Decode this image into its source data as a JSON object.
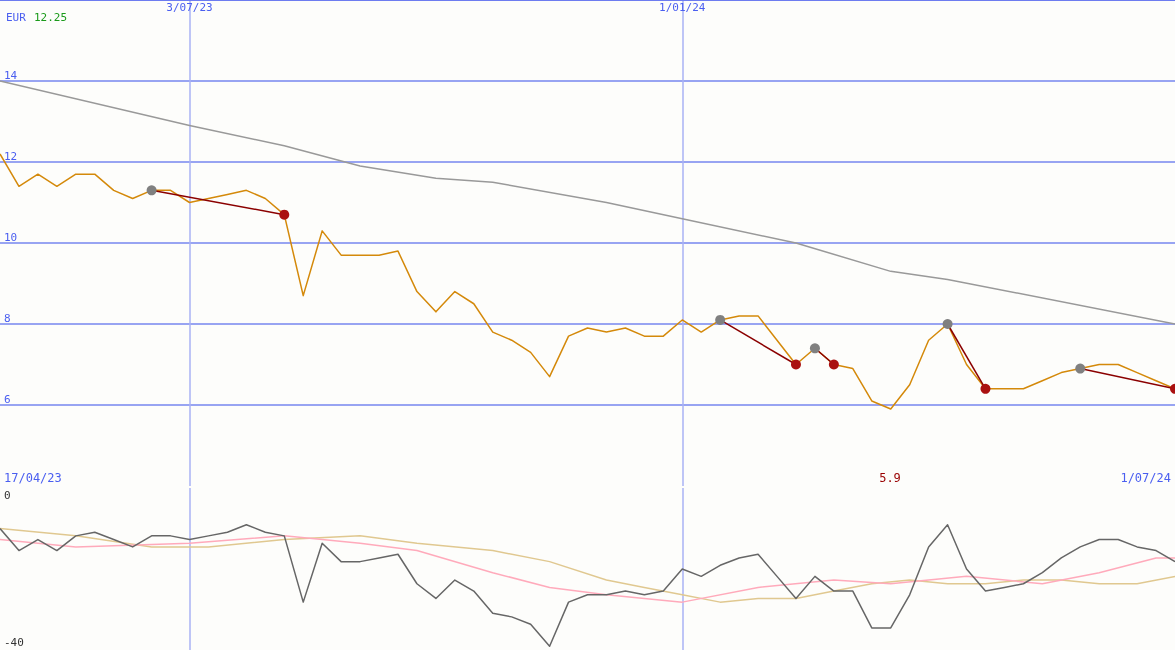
{
  "chart_data": [
    {
      "type": "line",
      "subtitle": "12.25",
      "ylabel": "EUR",
      "x": [
        "2023-04-24",
        "2023-05-01",
        "2023-05-08",
        "2023-05-15",
        "2023-05-22",
        "2023-05-29",
        "2023-06-05",
        "2023-06-12",
        "2023-06-19",
        "2023-06-26",
        "2023-07-03",
        "2023-07-10",
        "2023-07-17",
        "2023-07-24",
        "2023-07-31",
        "2023-08-07",
        "2023-08-14",
        "2023-08-21",
        "2023-08-28",
        "2023-09-04",
        "2023-09-11",
        "2023-09-18",
        "2023-09-25",
        "2023-10-02",
        "2023-10-09",
        "2023-10-16",
        "2023-10-23",
        "2023-10-30",
        "2023-11-06",
        "2023-11-13",
        "2023-11-20",
        "2023-11-27",
        "2023-12-04",
        "2023-12-11",
        "2023-12-18",
        "2023-12-25",
        "2024-01-01",
        "2024-01-08",
        "2024-01-15",
        "2024-01-22",
        "2024-01-29",
        "2024-02-05",
        "2024-02-12",
        "2024-02-19",
        "2024-02-26",
        "2024-03-04",
        "2024-03-11",
        "2024-03-18",
        "2024-03-25",
        "2024-04-01",
        "2024-04-08",
        "2024-04-15",
        "2024-04-22",
        "2024-04-29",
        "2024-05-06",
        "2024-05-13",
        "2024-05-20",
        "2024-05-27",
        "2024-06-03",
        "2024-06-10",
        "2024-06-17",
        "2024-06-24",
        "2024-07-01"
      ],
      "xlim": [
        "2023-04-24",
        "2024-07-01"
      ],
      "ylim": [
        4,
        16
      ],
      "xticks": [
        {
          "value": "2023-07-03",
          "label": "3/07/23"
        },
        {
          "value": "2024-01-01",
          "label": "1/01/24"
        }
      ],
      "yticks": [
        6,
        8,
        10,
        12,
        14
      ],
      "grid": true,
      "marker": "none",
      "annotations": [
        "17/04/23",
        "5.9",
        "1/07/24"
      ],
      "series": [
        {
          "color": "#999999",
          "x": [
            "2023-04-24",
            "2023-07-03",
            "2023-08-07",
            "2023-09-04",
            "2023-10-02",
            "2023-10-23",
            "2023-12-04",
            "2024-01-01",
            "2024-02-12",
            "2024-03-18",
            "2024-04-08",
            "2024-07-01"
          ],
          "values": [
            14.0,
            12.9,
            12.4,
            11.9,
            11.6,
            11.5,
            11.0,
            10.6,
            10.0,
            9.3,
            9.1,
            8.0
          ]
        },
        {
          "color": "#d4890a",
          "values": [
            12.2,
            11.4,
            11.7,
            11.4,
            11.7,
            11.7,
            11.3,
            11.1,
            11.3,
            11.3,
            11.0,
            11.1,
            11.2,
            11.3,
            11.1,
            10.7,
            8.7,
            10.3,
            9.7,
            9.7,
            9.7,
            9.8,
            8.8,
            8.3,
            8.8,
            8.5,
            7.8,
            7.6,
            7.3,
            6.7,
            7.7,
            7.9,
            7.8,
            7.9,
            7.7,
            7.7,
            8.1,
            7.8,
            8.1,
            8.2,
            8.2,
            7.6,
            7.0,
            7.4,
            7.0,
            6.9,
            6.1,
            5.9,
            6.5,
            7.6,
            8.0,
            7.0,
            6.4,
            6.4,
            6.4,
            6.6,
            6.8,
            6.9,
            7.0,
            7.0,
            6.8,
            6.6,
            6.4
          ]
        },
        {
          "color": "#8b0000",
          "marker": "circle",
          "colors": [
            "#808080",
            "#aa1111"
          ],
          "x": [
            "2023-06-19",
            "2023-08-07"
          ],
          "values": [
            11.3,
            10.7
          ]
        },
        {
          "color": "#8b0000",
          "marker": "circle",
          "colors": [
            "#808080",
            "#aa1111"
          ],
          "x": [
            "2024-01-15",
            "2024-02-12"
          ],
          "values": [
            8.1,
            7.0
          ]
        },
        {
          "color": "#8b0000",
          "marker": "circle",
          "colors": [
            "#808080",
            "#aa1111"
          ],
          "x": [
            "2024-02-19",
            "2024-02-26"
          ],
          "values": [
            7.4,
            7.0
          ]
        },
        {
          "color": "#8b0000",
          "marker": "circle",
          "colors": [
            "#808080",
            "#aa1111"
          ],
          "x": [
            "2024-04-08",
            "2024-04-22"
          ],
          "values": [
            8.0,
            6.4
          ]
        },
        {
          "color": "#8b0000",
          "marker": "circle",
          "colors": [
            "#808080",
            "#aa1111"
          ],
          "x": [
            "2024-05-27",
            "2024-07-01"
          ],
          "values": [
            6.9,
            6.4
          ]
        }
      ]
    },
    {
      "type": "line",
      "x": [
        "2023-04-24",
        "2023-05-01",
        "2023-05-08",
        "2023-05-15",
        "2023-05-22",
        "2023-05-29",
        "2023-06-05",
        "2023-06-12",
        "2023-06-19",
        "2023-06-26",
        "2023-07-03",
        "2023-07-10",
        "2023-07-17",
        "2023-07-24",
        "2023-07-31",
        "2023-08-07",
        "2023-08-14",
        "2023-08-21",
        "2023-08-28",
        "2023-09-04",
        "2023-09-11",
        "2023-09-18",
        "2023-09-25",
        "2023-10-02",
        "2023-10-09",
        "2023-10-16",
        "2023-10-23",
        "2023-10-30",
        "2023-11-06",
        "2023-11-13",
        "2023-11-20",
        "2023-11-27",
        "2023-12-04",
        "2023-12-11",
        "2023-12-18",
        "2023-12-25",
        "2024-01-01",
        "2024-01-08",
        "2024-01-15",
        "2024-01-22",
        "2024-01-29",
        "2024-02-05",
        "2024-02-12",
        "2024-02-19",
        "2024-02-26",
        "2024-03-04",
        "2024-03-11",
        "2024-03-18",
        "2024-03-25",
        "2024-04-01",
        "2024-04-08",
        "2024-04-15",
        "2024-04-22",
        "2024-04-29",
        "2024-05-06",
        "2024-05-13",
        "2024-05-20",
        "2024-05-27",
        "2024-06-03",
        "2024-06-10",
        "2024-06-17",
        "2024-06-24",
        "2024-07-01"
      ],
      "xlim": [
        "2023-04-24",
        "2024-07-01"
      ],
      "ylim": [
        -42,
        2
      ],
      "xticks": [
        {
          "value": "2023-07-03",
          "label": null
        },
        {
          "value": "2024-01-01",
          "label": null
        }
      ],
      "yticks": [
        0,
        -40
      ],
      "grid": "x",
      "marker": "none",
      "tick_labels": "y",
      "series": [
        {
          "color": "#e0c890",
          "x": [
            "2023-04-24",
            "2023-05-22",
            "2023-06-19",
            "2023-07-10",
            "2023-08-07",
            "2023-09-04",
            "2023-09-25",
            "2023-10-23",
            "2023-11-13",
            "2023-12-04",
            "2023-12-18",
            "2024-01-01",
            "2024-01-15",
            "2024-01-29",
            "2024-02-12",
            "2024-02-26",
            "2024-03-11",
            "2024-03-25",
            "2024-04-08",
            "2024-04-22",
            "2024-05-06",
            "2024-05-20",
            "2024-06-03",
            "2024-06-17",
            "2024-07-01"
          ],
          "values": [
            -9,
            -11,
            -14,
            -14,
            -12,
            -11,
            -13,
            -15,
            -18,
            -23,
            -25,
            -27,
            -29,
            -28,
            -28,
            -26,
            -24,
            -23,
            -24,
            -24,
            -23,
            -23,
            -24,
            -24,
            -22
          ]
        },
        {
          "color": "#ffaabb",
          "x": [
            "2023-04-24",
            "2023-05-22",
            "2023-07-03",
            "2023-08-07",
            "2023-09-04",
            "2023-09-25",
            "2023-10-23",
            "2023-11-13",
            "2023-12-04",
            "2024-01-01",
            "2024-01-29",
            "2024-02-26",
            "2024-03-18",
            "2024-04-15",
            "2024-05-13",
            "2024-06-03",
            "2024-06-24",
            "2024-07-01"
          ],
          "values": [
            -12,
            -14,
            -13,
            -11,
            -13,
            -15,
            -21,
            -25,
            -27,
            -29,
            -25,
            -23,
            -24,
            -22,
            -24,
            -21,
            -17,
            -17
          ]
        },
        {
          "color": "#666666",
          "values": [
            -9,
            -15,
            -12,
            -15,
            -11,
            -10,
            -12,
            -14,
            -11,
            -11,
            -12,
            -11,
            -10,
            -8,
            -10,
            -11,
            -29,
            -13,
            -18,
            -18,
            -17,
            -16,
            -24,
            -28,
            -23,
            -26,
            -32,
            -33,
            -35,
            -41,
            -29,
            -27,
            -27,
            -26,
            -27,
            -26,
            -20,
            -22,
            -19,
            -17,
            -16,
            -22,
            -28,
            -22,
            -26,
            -26,
            -36,
            -36,
            -27,
            -14,
            -8,
            -20,
            -26,
            -25,
            -24,
            -21,
            -17,
            -14,
            -12,
            -12,
            -14,
            -15,
            -18
          ]
        }
      ]
    }
  ]
}
